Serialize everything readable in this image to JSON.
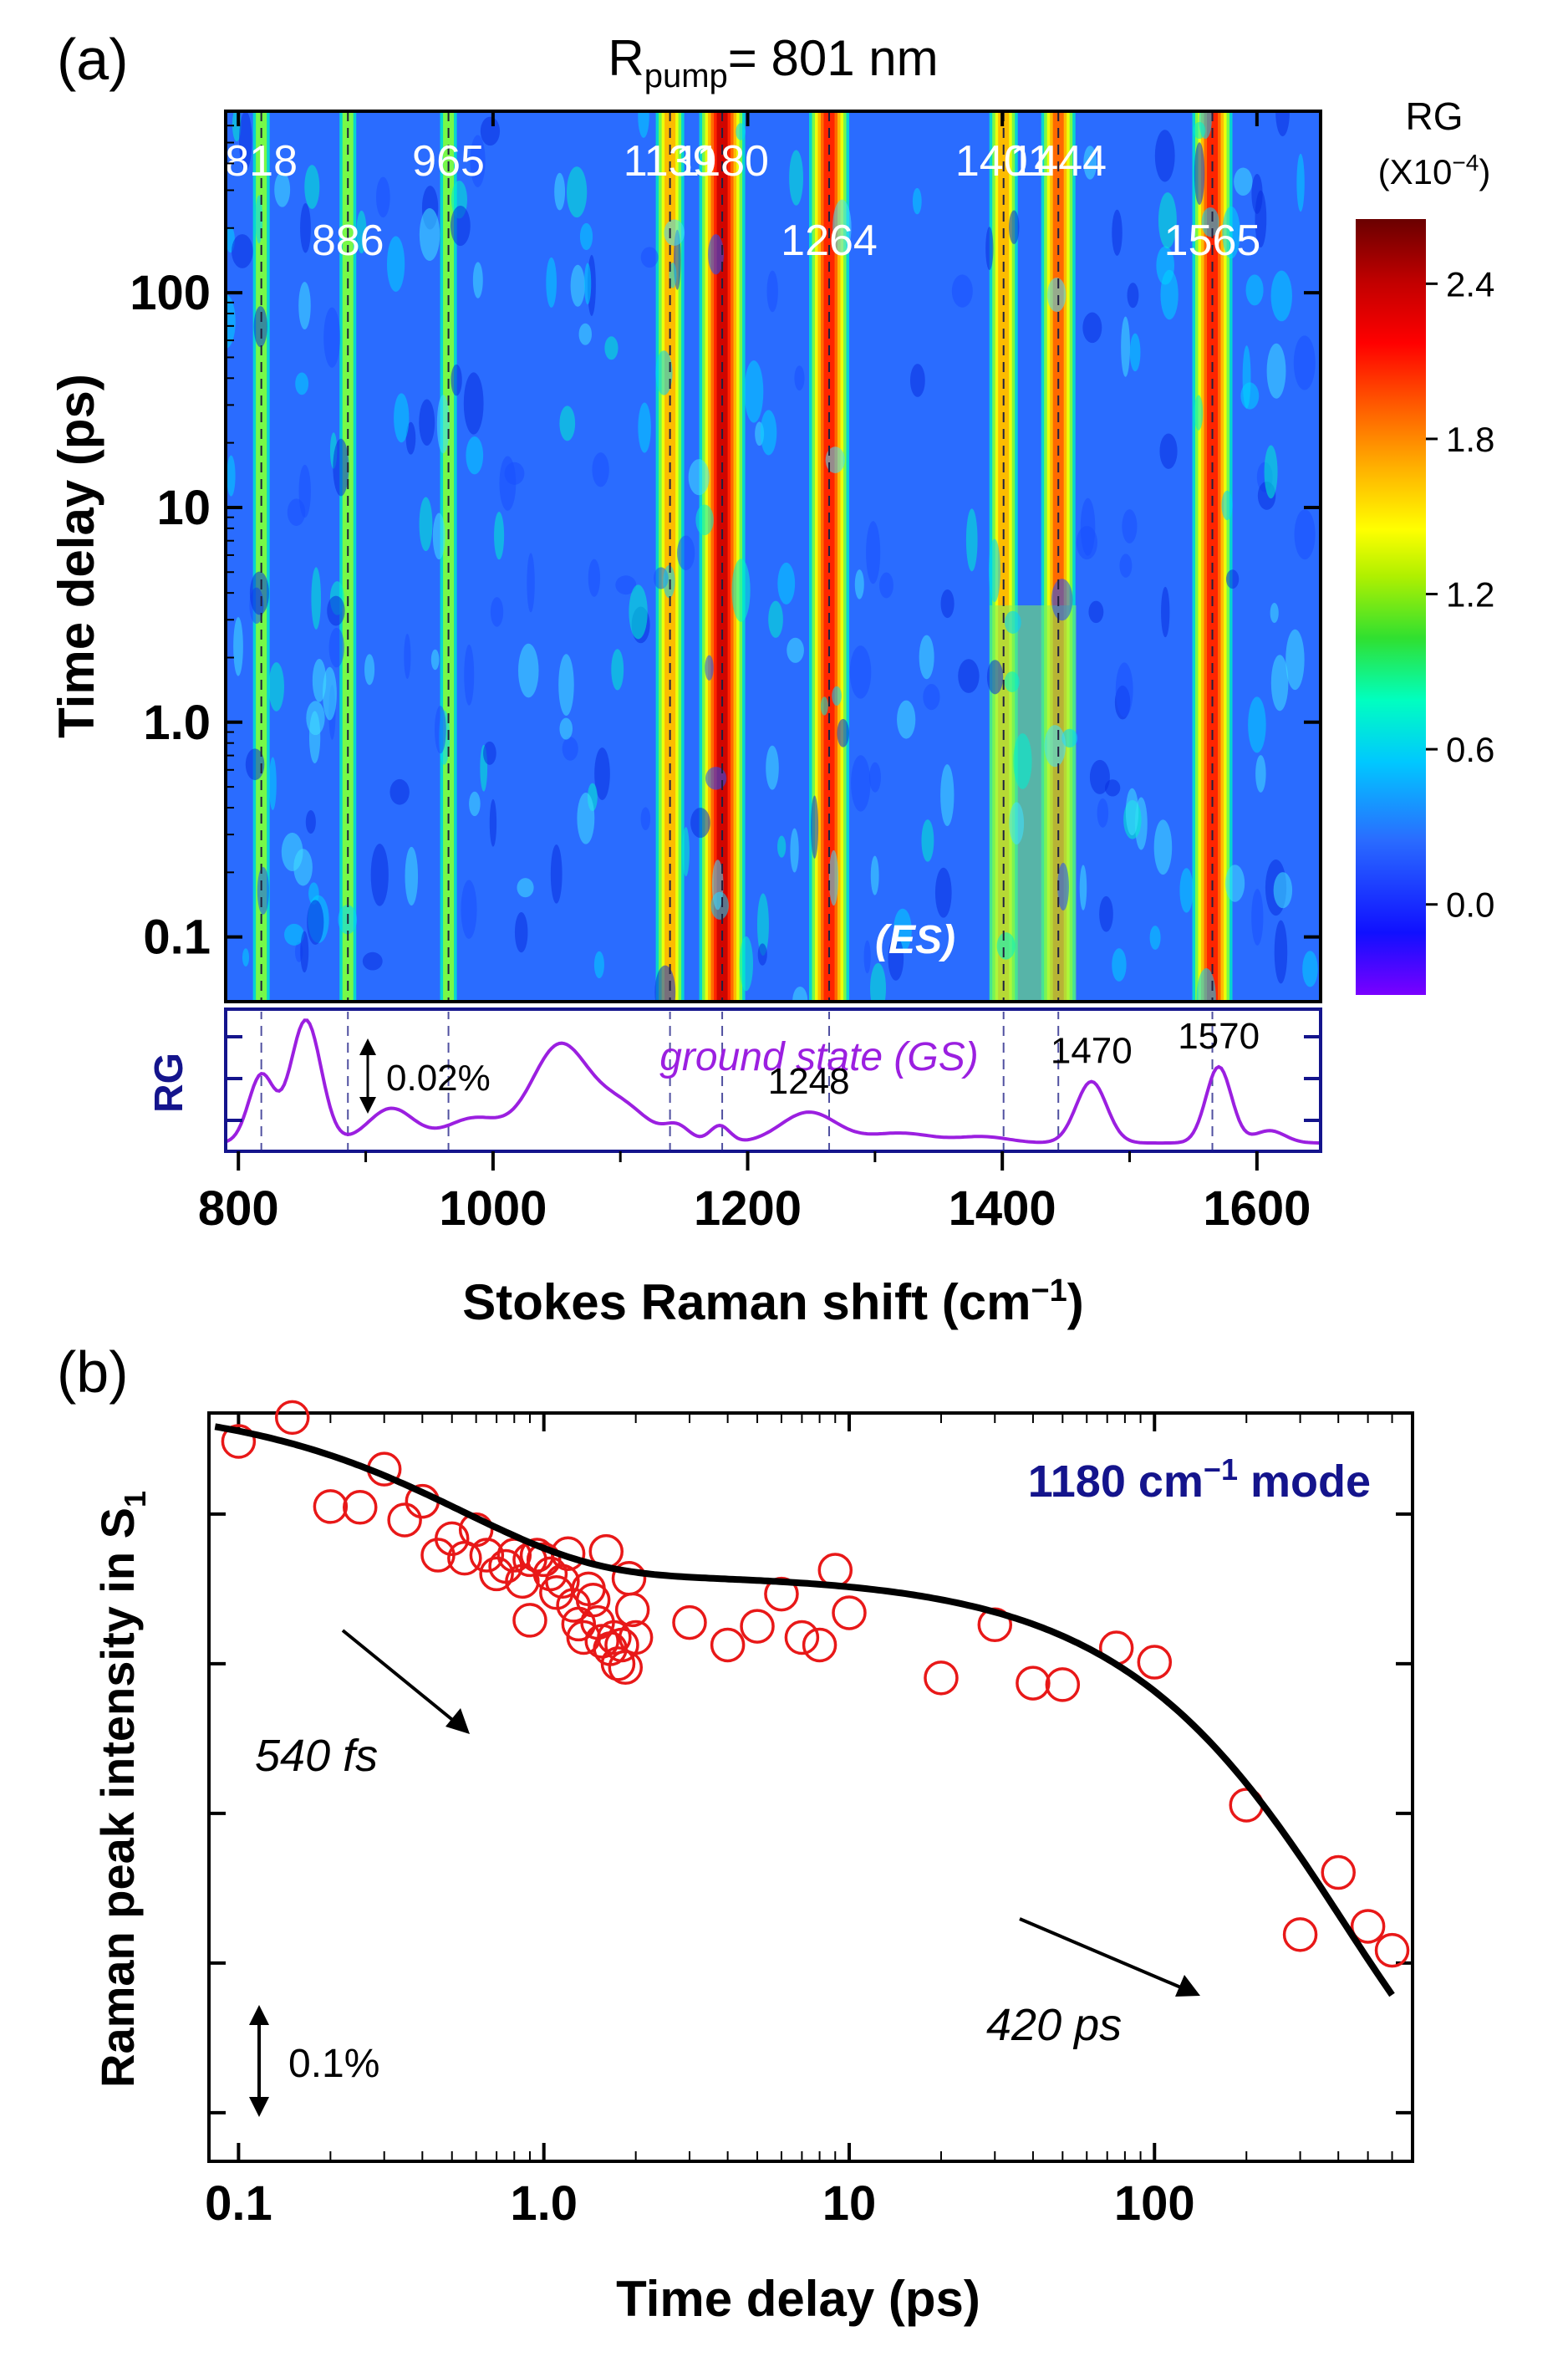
{
  "chart_data": [
    {
      "panel": "(a)",
      "type": "heatmap",
      "title": "R",
      "title_sub": "pump",
      "title_suffix": "= 801 nm",
      "xlabel": "Stokes Raman shift (cm",
      "xlabel_sup": "−1",
      "xlabel_end": ")",
      "ylabel": "Time delay (ps)",
      "xlim": [
        790,
        1650
      ],
      "x_ticks": [
        "800",
        "1000",
        "1200",
        "1400",
        "1600"
      ],
      "x_tick_values": [
        800,
        1000,
        1200,
        1400,
        1600
      ],
      "y_scale": "log",
      "ylim": [
        0.05,
        700
      ],
      "y_ticks": [
        "0.1",
        "1.0",
        "10",
        "100"
      ],
      "y_tick_values": [
        0.1,
        1,
        10,
        100
      ],
      "colorbar": {
        "label": "RG",
        "unit": "(X10",
        "unit_sup": "−4",
        "unit_end": ")",
        "range": [
          -0.35,
          2.65
        ],
        "ticks": [
          "0.0",
          "0.6",
          "1.2",
          "1.8",
          "2.4"
        ],
        "tick_values": [
          0,
          0.6,
          1.2,
          1.8,
          2.4
        ]
      },
      "es_modes": [
        {
          "label": "818",
          "x": 818,
          "row": 1,
          "strength": 0.25
        },
        {
          "label": "886",
          "x": 886,
          "row": 2,
          "strength": 0.3
        },
        {
          "label": "965",
          "x": 965,
          "row": 1,
          "strength": 0.35
        },
        {
          "label": "1139",
          "x": 1139,
          "row": 1,
          "strength": 0.6
        },
        {
          "label": "1180",
          "x": 1180,
          "row": 1,
          "strength": 1.0
        },
        {
          "label": "1264",
          "x": 1264,
          "row": 2,
          "strength": 0.8
        },
        {
          "label": "1401",
          "x": 1401,
          "row": 1,
          "strength": 0.5
        },
        {
          "label": "1444",
          "x": 1444,
          "row": 1,
          "strength": 0.65
        },
        {
          "label": "1565",
          "x": 1565,
          "row": 2,
          "strength": 0.85
        }
      ],
      "es_label": "(ES)",
      "gs_panel": {
        "ylabel": "RG",
        "label": "ground state (GS)",
        "scale_label": "0.02%",
        "annotated_peaks": [
          {
            "label": "1248",
            "x": 1248
          },
          {
            "label": "1470",
            "x": 1470
          },
          {
            "label": "1570",
            "x": 1570
          }
        ],
        "peaks": [
          {
            "x": 818,
            "a": 0.55,
            "w": 10
          },
          {
            "x": 853,
            "a": 1.0,
            "w": 12
          },
          {
            "x": 920,
            "a": 0.28,
            "w": 18
          },
          {
            "x": 985,
            "a": 0.2,
            "w": 22
          },
          {
            "x": 1052,
            "a": 0.78,
            "w": 22
          },
          {
            "x": 1100,
            "a": 0.3,
            "w": 22
          },
          {
            "x": 1145,
            "a": 0.12,
            "w": 10
          },
          {
            "x": 1178,
            "a": 0.14,
            "w": 8
          },
          {
            "x": 1248,
            "a": 0.25,
            "w": 22
          },
          {
            "x": 1320,
            "a": 0.08,
            "w": 25
          },
          {
            "x": 1385,
            "a": 0.05,
            "w": 20
          },
          {
            "x": 1470,
            "a": 0.5,
            "w": 12
          },
          {
            "x": 1570,
            "a": 0.62,
            "w": 10
          },
          {
            "x": 1610,
            "a": 0.1,
            "w": 12
          }
        ]
      }
    },
    {
      "panel": "(b)",
      "type": "scatter",
      "series_label": "1180 cm",
      "series_label_sup": "−1",
      "series_label_end": " mode",
      "xlabel": "Time delay (ps)",
      "ylabel": "Raman peak intensity in S",
      "ylabel_sub": "1",
      "x_scale": "log",
      "xlim": [
        0.08,
        700
      ],
      "x_ticks": [
        "0.1",
        "1.0",
        "10",
        "100"
      ],
      "x_tick_values": [
        0.1,
        1,
        10,
        100
      ],
      "ylim": [
        0,
        1
      ],
      "y_tick_values": [
        0.065,
        0.265,
        0.465,
        0.665,
        0.865,
        1.065
      ],
      "scale_label": "0.1%",
      "annotations": [
        {
          "text": "540 fs",
          "x": 0.22,
          "y": 0.7
        },
        {
          "text": "420 ps",
          "x": 150,
          "y": 0.25
        }
      ],
      "points": [
        [
          0.1,
          0.962
        ],
        [
          0.15,
          0.994
        ],
        [
          0.2,
          0.875
        ],
        [
          0.25,
          0.874
        ],
        [
          0.3,
          0.925
        ],
        [
          0.35,
          0.857
        ],
        [
          0.4,
          0.882
        ],
        [
          0.45,
          0.81
        ],
        [
          0.5,
          0.832
        ],
        [
          0.55,
          0.806
        ],
        [
          0.6,
          0.844
        ],
        [
          0.65,
          0.81
        ],
        [
          0.7,
          0.785
        ],
        [
          0.75,
          0.795
        ],
        [
          0.8,
          0.81
        ],
        [
          0.85,
          0.775
        ],
        [
          0.9,
          0.804
        ],
        [
          0.9,
          0.723
        ],
        [
          0.95,
          0.81
        ],
        [
          1.0,
          0.804
        ],
        [
          1.05,
          0.785
        ],
        [
          1.1,
          0.76
        ],
        [
          1.15,
          0.775
        ],
        [
          1.2,
          0.812
        ],
        [
          1.25,
          0.743
        ],
        [
          1.3,
          0.718
        ],
        [
          1.35,
          0.7
        ],
        [
          1.4,
          0.765
        ],
        [
          1.45,
          0.75
        ],
        [
          1.5,
          0.72
        ],
        [
          1.55,
          0.695
        ],
        [
          1.6,
          0.815
        ],
        [
          1.65,
          0.685
        ],
        [
          1.7,
          0.7
        ],
        [
          1.75,
          0.665
        ],
        [
          1.8,
          0.69
        ],
        [
          1.85,
          0.66
        ],
        [
          1.9,
          0.779
        ],
        [
          1.95,
          0.737
        ],
        [
          2.0,
          0.7
        ],
        [
          3.0,
          0.72
        ],
        [
          4.0,
          0.69
        ],
        [
          5.0,
          0.715
        ],
        [
          6.0,
          0.758
        ],
        [
          7.0,
          0.7
        ],
        [
          8.0,
          0.69
        ],
        [
          9.0,
          0.79
        ],
        [
          10.0,
          0.733
        ],
        [
          20.0,
          0.646
        ],
        [
          30.0,
          0.717
        ],
        [
          40.0,
          0.639
        ],
        [
          50.0,
          0.637
        ],
        [
          75.0,
          0.686
        ],
        [
          100.0,
          0.667
        ],
        [
          200.0,
          0.476
        ],
        [
          300.0,
          0.303
        ],
        [
          400.0,
          0.386
        ],
        [
          500.0,
          0.314
        ],
        [
          600.0,
          0.282
        ]
      ],
      "fit": {
        "c": 0.045,
        "a1": 0.23,
        "t1": 0.54,
        "a2": 0.74,
        "t2": 420
      }
    }
  ]
}
